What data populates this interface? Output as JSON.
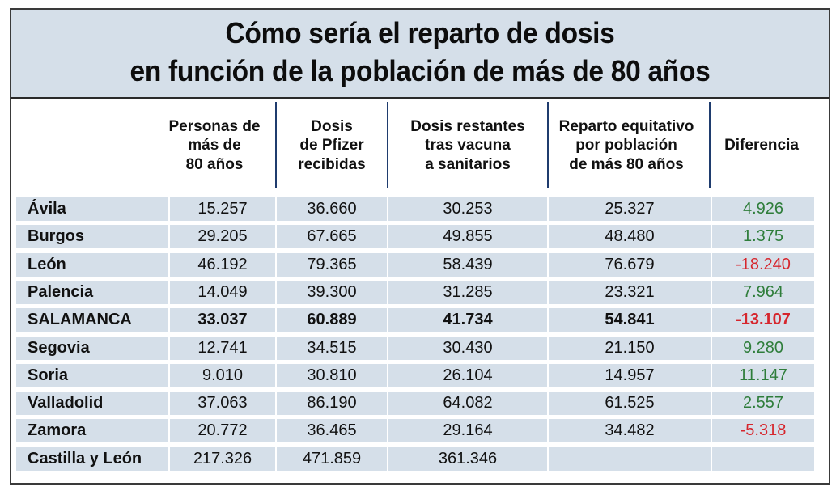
{
  "title": {
    "line1": "Cómo sería el reparto de dosis",
    "line2": "en función de la población de más de 80 años"
  },
  "columns": [
    "Personas de\nmás de\n80 años",
    "Dosis\nde Pfizer\nrecibidas",
    "Dosis restantes\ntras vacuna\na sanitarios",
    "Reparto equitativo\npor población\nde más 80 años",
    "Diferencia"
  ],
  "rows": [
    {
      "name": "Ávila",
      "personas": "15.257",
      "dosis": "36.660",
      "restantes": "30.253",
      "reparto": "25.327",
      "diferencia": "4.926",
      "sign": "pos"
    },
    {
      "name": "Burgos",
      "personas": "29.205",
      "dosis": "67.665",
      "restantes": "49.855",
      "reparto": "48.480",
      "diferencia": "1.375",
      "sign": "pos"
    },
    {
      "name": "León",
      "personas": "46.192",
      "dosis": "79.365",
      "restantes": "58.439",
      "reparto": "76.679",
      "diferencia": "-18.240",
      "sign": "neg"
    },
    {
      "name": "Palencia",
      "personas": "14.049",
      "dosis": "39.300",
      "restantes": "31.285",
      "reparto": "23.321",
      "diferencia": "7.964",
      "sign": "pos"
    },
    {
      "name": "SALAMANCA",
      "personas": "33.037",
      "dosis": "60.889",
      "restantes": "41.734",
      "reparto": "54.841",
      "diferencia": "-13.107",
      "sign": "neg",
      "bold": true
    },
    {
      "name": "Segovia",
      "personas": "12.741",
      "dosis": "34.515",
      "restantes": "30.430",
      "reparto": "21.150",
      "diferencia": "9.280",
      "sign": "pos"
    },
    {
      "name": "Soria",
      "personas": "9.010",
      "dosis": "30.810",
      "restantes": "26.104",
      "reparto": "14.957",
      "diferencia": "11.147",
      "sign": "pos"
    },
    {
      "name": "Valladolid",
      "personas": "37.063",
      "dosis": "86.190",
      "restantes": "64.082",
      "reparto": "61.525",
      "diferencia": "2.557",
      "sign": "pos"
    },
    {
      "name": "Zamora",
      "personas": "20.772",
      "dosis": "36.465",
      "restantes": "29.164",
      "reparto": "34.482",
      "diferencia": "-5.318",
      "sign": "neg"
    },
    {
      "name": "Castilla y León",
      "personas": "217.326",
      "dosis": "471.859",
      "restantes": "361.346",
      "reparto": "",
      "diferencia": "",
      "sign": ""
    }
  ],
  "colors": {
    "band": "#d5dfe9",
    "positive": "#2e7d3a",
    "negative": "#d6262d",
    "rule": "#1f3c6e"
  },
  "chart_data": {
    "type": "table",
    "title": "Cómo sería el reparto de dosis en función de la población de más de 80 años",
    "columns": [
      "",
      "Personas de más de 80 años",
      "Dosis de Pfizer recibidas",
      "Dosis restantes tras vacuna a sanitarios",
      "Reparto equitativo por población de más 80 años",
      "Diferencia"
    ],
    "rows": [
      [
        "Ávila",
        15257,
        36660,
        30253,
        25327,
        4926
      ],
      [
        "Burgos",
        29205,
        67665,
        49855,
        48480,
        1375
      ],
      [
        "León",
        46192,
        79365,
        58439,
        76679,
        -18240
      ],
      [
        "Palencia",
        14049,
        39300,
        31285,
        23321,
        7964
      ],
      [
        "SALAMANCA",
        33037,
        60889,
        41734,
        54841,
        -13107
      ],
      [
        "Segovia",
        12741,
        34515,
        30430,
        21150,
        9280
      ],
      [
        "Soria",
        9010,
        30810,
        26104,
        14957,
        11147
      ],
      [
        "Valladolid",
        37063,
        86190,
        64082,
        61525,
        2557
      ],
      [
        "Zamora",
        20772,
        36465,
        29164,
        34482,
        -5318
      ],
      [
        "Castilla y León",
        217326,
        471859,
        361346,
        null,
        null
      ]
    ]
  }
}
